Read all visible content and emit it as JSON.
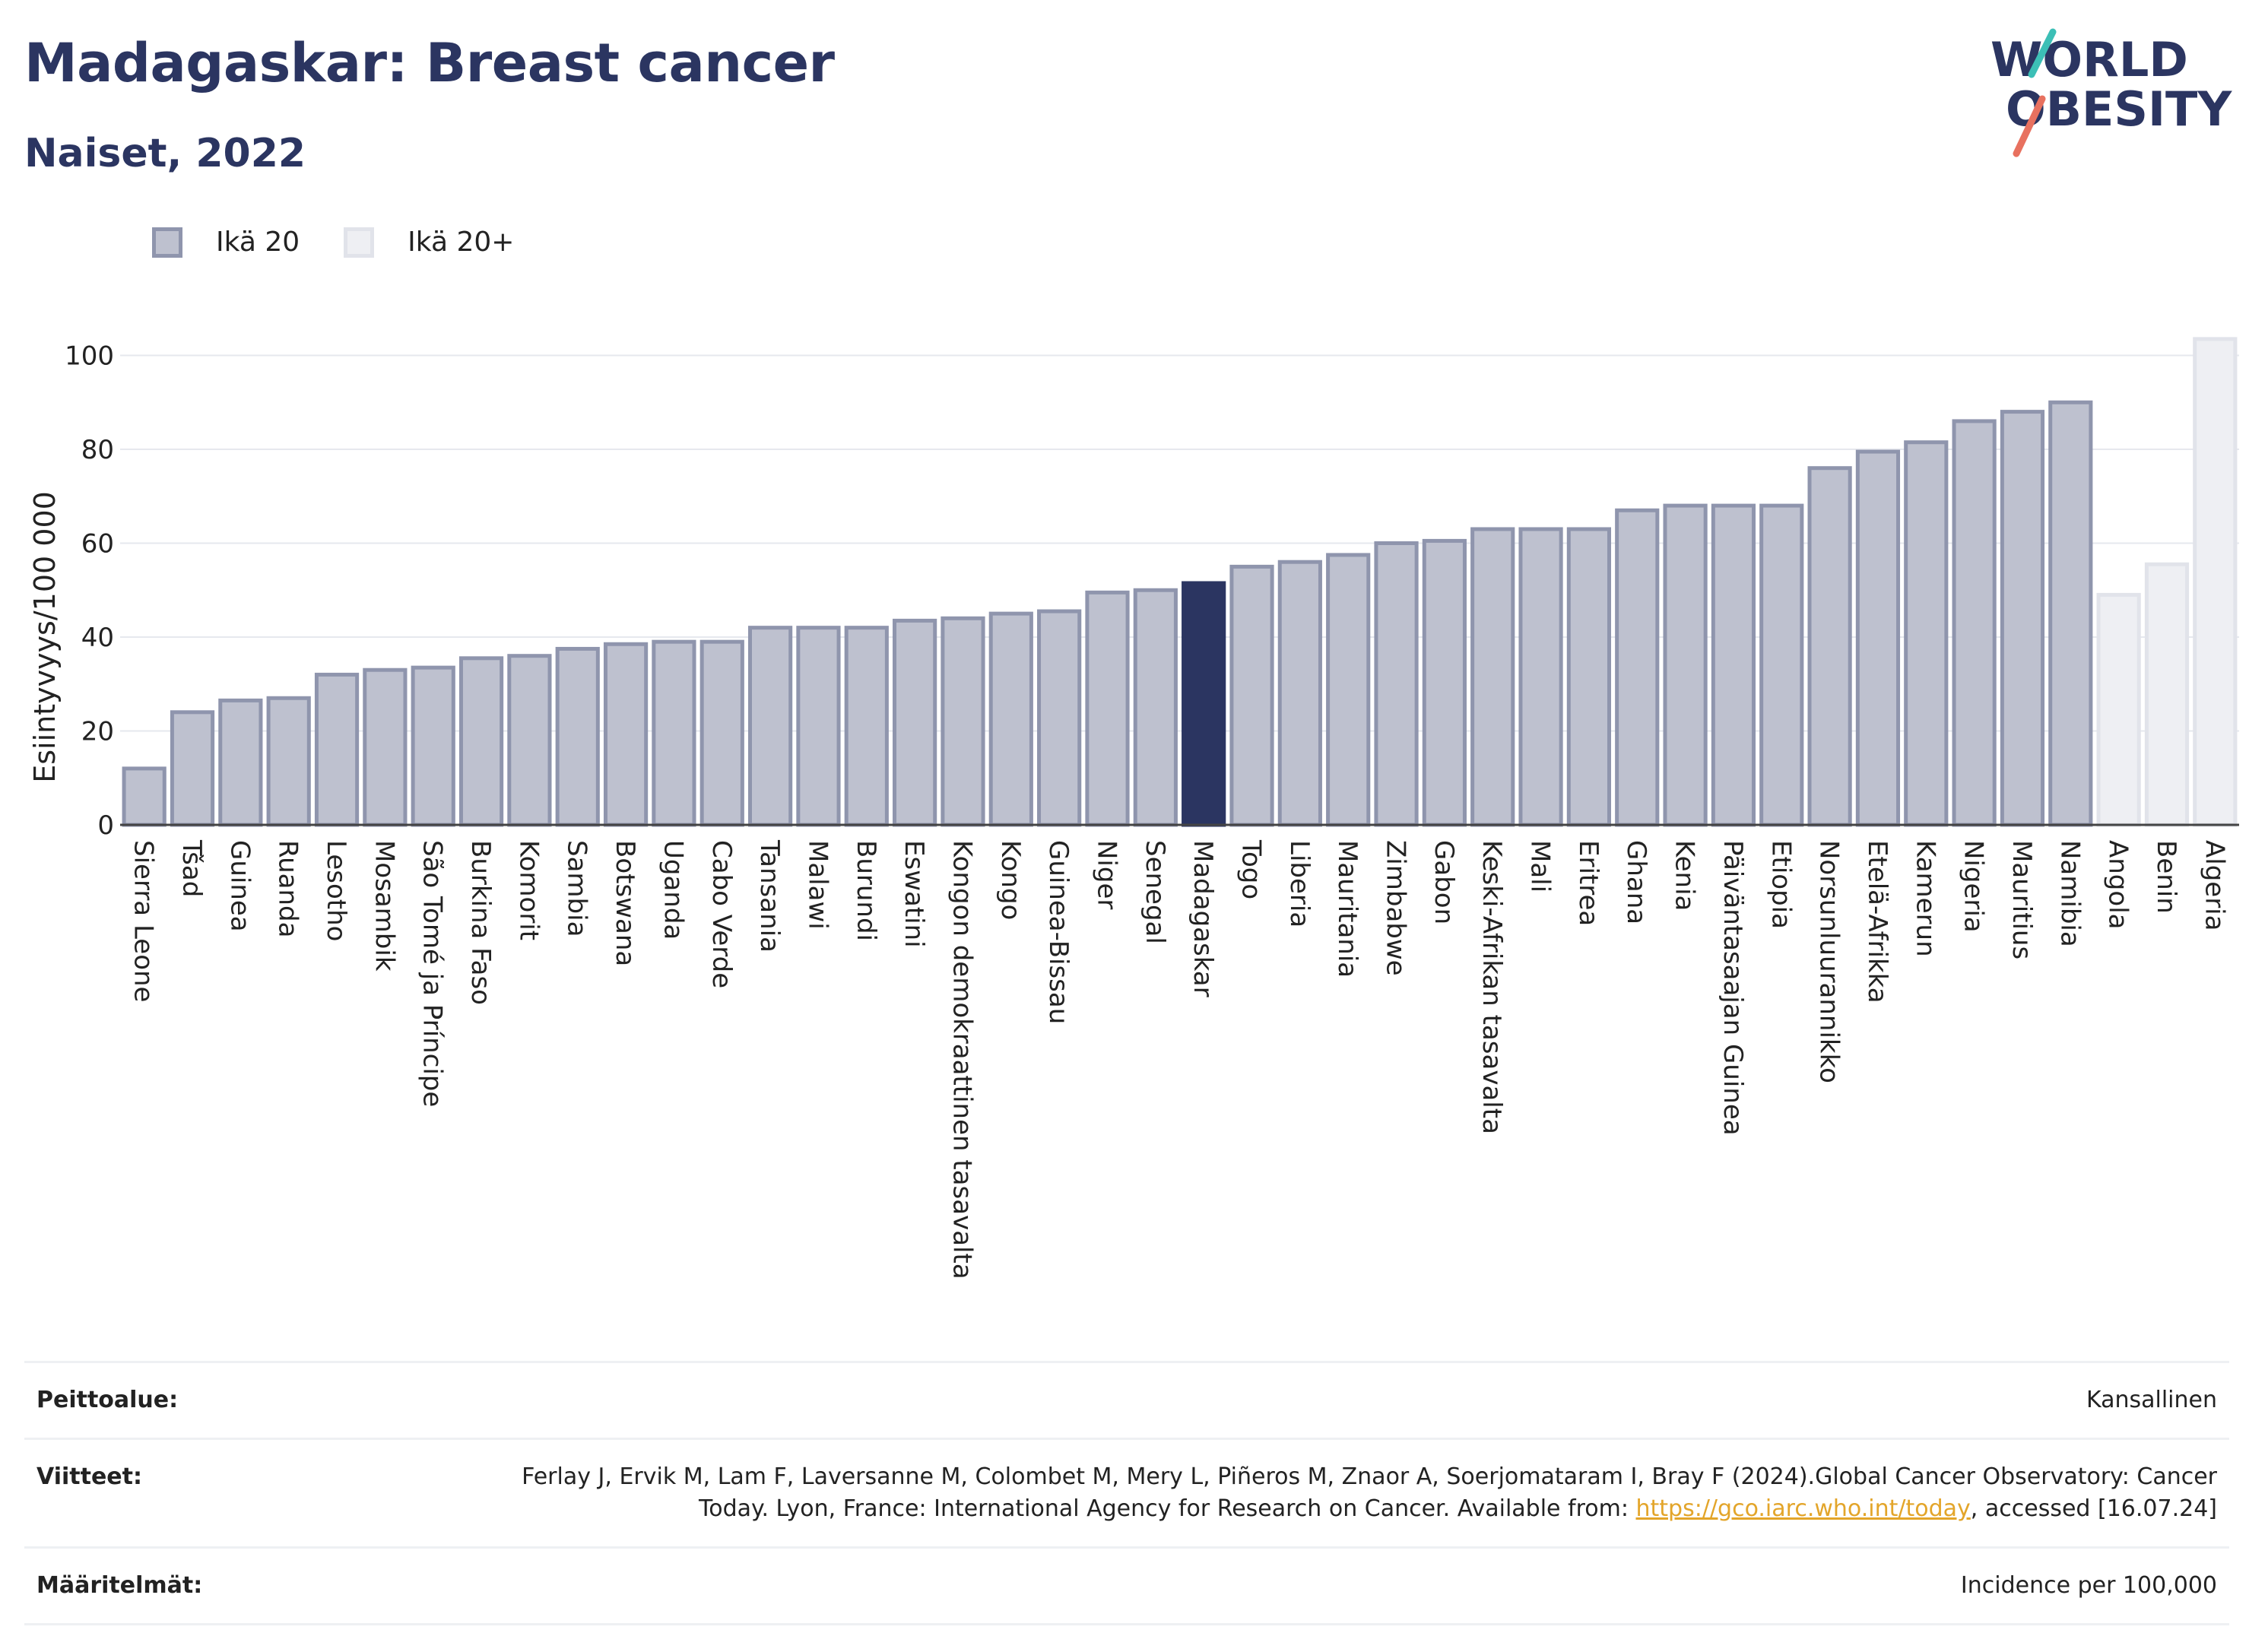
{
  "header": {
    "title": "Madagaskar: Breast cancer",
    "subtitle": "Naiset, 2022",
    "logo_text_1": "WORLD",
    "logo_text_2": "OBESITY"
  },
  "legend": [
    {
      "label": "Ikä 20",
      "color": "#bec1cf"
    },
    {
      "label": "Ikä 20+",
      "color": "#eeeff3"
    }
  ],
  "colors": {
    "bar": "#bec1cf",
    "bar_border": "#8f95ad",
    "highlight": "#2b3561",
    "bar_plus": "#eeeff3",
    "bar_plus_border": "#e1e3ea",
    "title": "#2b3561",
    "link": "#e3a52a"
  },
  "chart_data": {
    "type": "bar",
    "ylabel": "Esiintyvyys/100 000",
    "ylim": [
      0,
      105
    ],
    "yticks": [
      0,
      20,
      40,
      60,
      80,
      100
    ],
    "grid": true,
    "legend_position": "top-left",
    "highlight": "Madagaskar",
    "categories": [
      "Sierra Leone",
      "Tšad",
      "Guinea",
      "Ruanda",
      "Lesotho",
      "Mosambik",
      "São Tomé ja Príncipe",
      "Burkina Faso",
      "Komorit",
      "Sambia",
      "Botswana",
      "Uganda",
      "Cabo Verde",
      "Tansania",
      "Malawi",
      "Burundi",
      "Eswatini",
      "Kongon demokraattinen tasavalta",
      "Kongo",
      "Guinea-Bissau",
      "Niger",
      "Senegal",
      "Madagaskar",
      "Togo",
      "Liberia",
      "Mauritania",
      "Zimbabwe",
      "Gabon",
      "Keski-Afrikan tasavalta",
      "Mali",
      "Eritrea",
      "Ghana",
      "Kenia",
      "Päiväntasaajan Guinea",
      "Etiopia",
      "Norsunluurannikko",
      "Etelä-Afrikka",
      "Kamerun",
      "Nigeria",
      "Mauritius",
      "Namibia",
      "Angola",
      "Benin",
      "Algeria"
    ],
    "values": [
      12,
      24,
      26.5,
      27,
      32,
      33,
      33.5,
      35.5,
      36,
      37.5,
      38.5,
      39,
      39,
      42,
      42,
      42,
      43.5,
      44,
      45,
      45.5,
      49.5,
      50,
      51.5,
      55,
      56,
      57.5,
      60,
      60.5,
      63,
      63,
      63,
      67,
      68,
      68,
      68,
      76,
      79.5,
      81.5,
      86,
      88,
      90,
      49,
      55.5,
      103.5
    ],
    "series_group": [
      "Ikä 20",
      "Ikä 20",
      "Ikä 20",
      "Ikä 20",
      "Ikä 20",
      "Ikä 20",
      "Ikä 20",
      "Ikä 20",
      "Ikä 20",
      "Ikä 20",
      "Ikä 20",
      "Ikä 20",
      "Ikä 20",
      "Ikä 20",
      "Ikä 20",
      "Ikä 20",
      "Ikä 20",
      "Ikä 20",
      "Ikä 20",
      "Ikä 20",
      "Ikä 20",
      "Ikä 20",
      "Ikä 20",
      "Ikä 20",
      "Ikä 20",
      "Ikä 20",
      "Ikä 20",
      "Ikä 20",
      "Ikä 20",
      "Ikä 20",
      "Ikä 20",
      "Ikä 20",
      "Ikä 20",
      "Ikä 20",
      "Ikä 20",
      "Ikä 20",
      "Ikä 20",
      "Ikä 20",
      "Ikä 20",
      "Ikä 20",
      "Ikä 20",
      "Ikä 20+",
      "Ikä 20+",
      "Ikä 20+"
    ]
  },
  "footer": {
    "coverage_label": "Peittoalue:",
    "coverage_value": "Kansallinen",
    "references_label": "Viitteet:",
    "references_text": "Ferlay J, Ervik M, Lam F, Laversanne M, Colombet M, Mery L, Piñeros M, Znaor A, Soerjomataram I, Bray F (2024).Global Cancer Observatory: Cancer Today. Lyon, France: International Agency for Research on Cancer. Available from: ",
    "references_link": "https://gco.iarc.who.int/today",
    "references_suffix": ", accessed [16.07.24]",
    "definitions_label": "Määritelmät:",
    "definitions_value": "Incidence per 100,000"
  }
}
